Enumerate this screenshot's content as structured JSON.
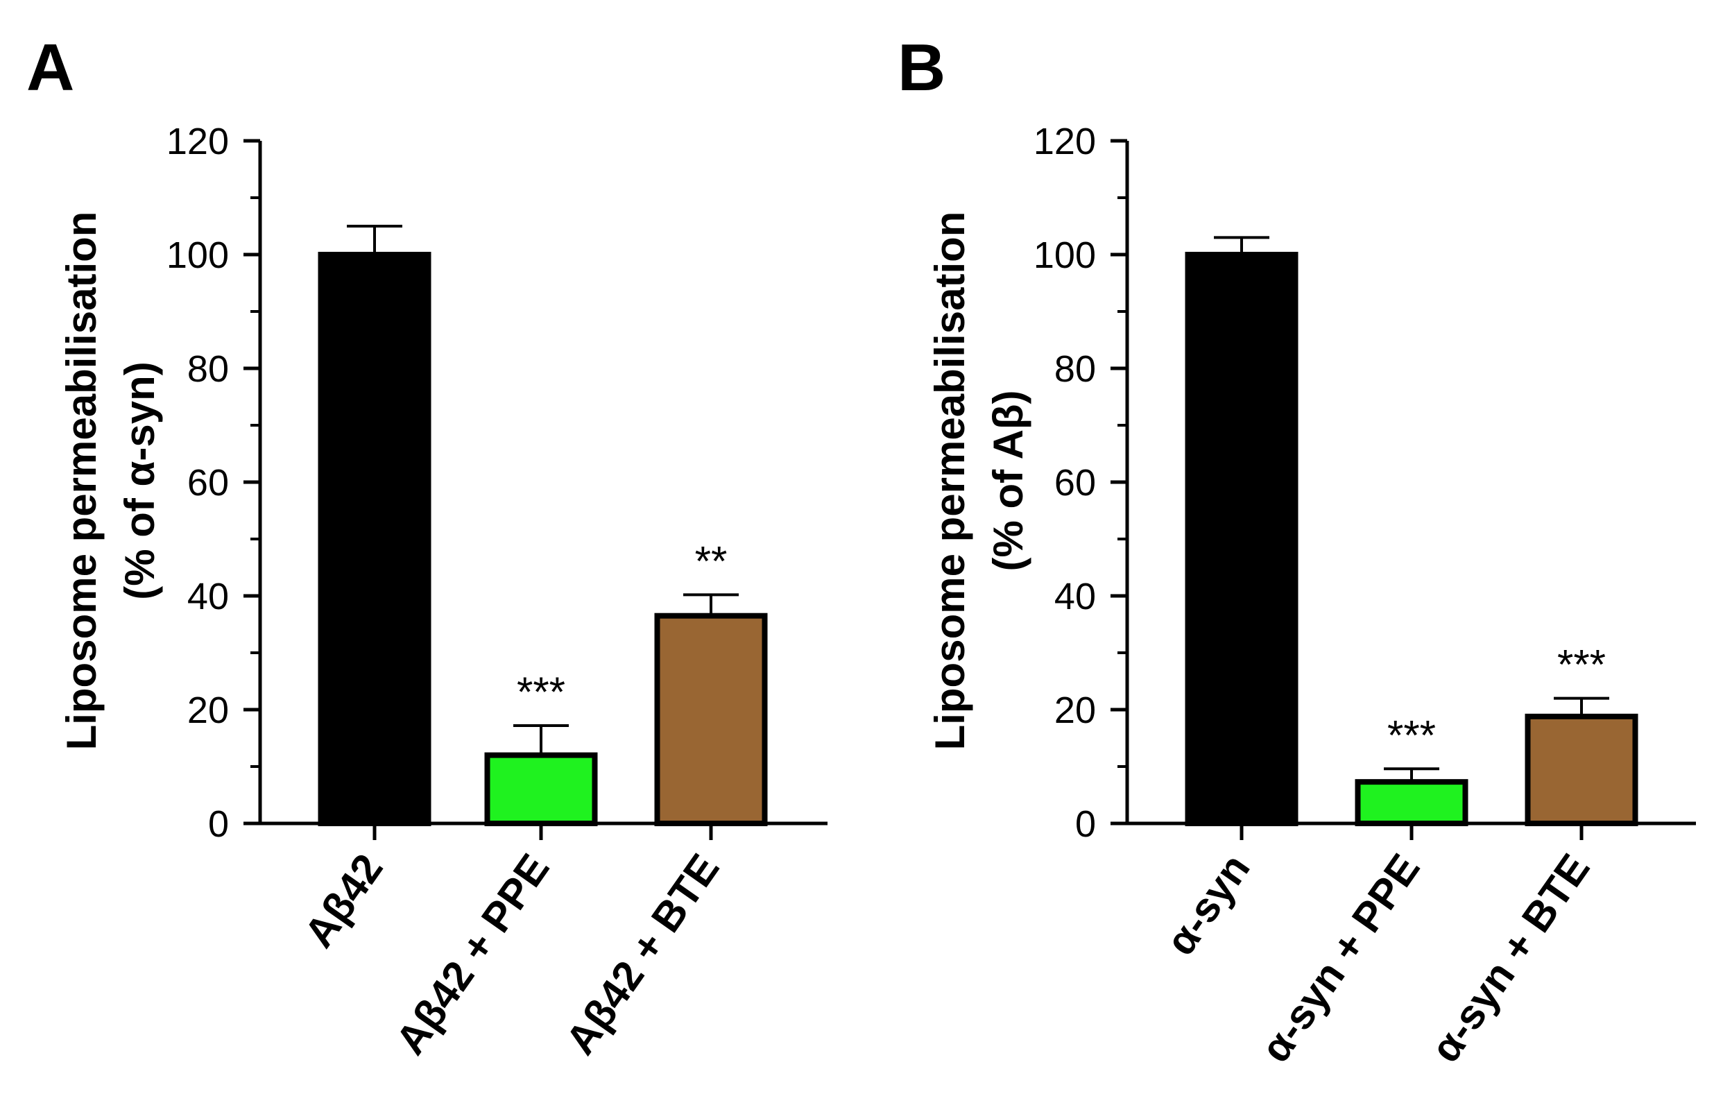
{
  "chart_data": [
    {
      "type": "bar",
      "panel_label": "A",
      "categories": [
        "Aβ42",
        "Aβ42 + PPE",
        "Aβ42 + BTE"
      ],
      "values": [
        100,
        12,
        36.5
      ],
      "errors": [
        5,
        5.2,
        3.7
      ],
      "significance": [
        "",
        "***",
        "**"
      ],
      "colors": [
        "#000000",
        "#1ff21f",
        "#996633"
      ],
      "ylabel_line1": "Liposome permeabilisation",
      "ylabel_line2": "(% of α-syn)",
      "ylim": [
        0,
        120
      ],
      "yticks": [
        "0",
        "20",
        "40",
        "60",
        "80",
        "100",
        "120"
      ]
    },
    {
      "type": "bar",
      "panel_label": "B",
      "categories": [
        "α-syn",
        "α-syn + PPE",
        "α-syn + BTE"
      ],
      "values": [
        100,
        7.3,
        18.8
      ],
      "errors": [
        3,
        2.3,
        3.2
      ],
      "significance": [
        "",
        "***",
        "***"
      ],
      "colors": [
        "#000000",
        "#1ff21f",
        "#996633"
      ],
      "ylabel_line1": "Liposome permeabilisation",
      "ylabel_line2": "(% of Aβ)",
      "ylim": [
        0,
        120
      ],
      "yticks": [
        "0",
        "20",
        "40",
        "60",
        "80",
        "100",
        "120"
      ]
    }
  ]
}
